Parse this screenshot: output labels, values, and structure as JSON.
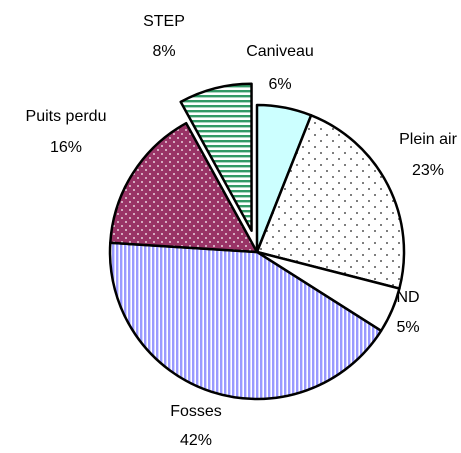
{
  "chart_data": {
    "type": "pie",
    "categories": [
      "Caniveau",
      "Plein air",
      "ND",
      "Fosses",
      "Puits perdu",
      "STEP"
    ],
    "values": [
      6,
      23,
      5,
      42,
      16,
      8
    ],
    "value_labels": [
      "6%",
      "23%",
      "5%",
      "42%",
      "16%",
      "8%"
    ],
    "colors": [
      "#ccffff",
      "#ffffff",
      "#ffffff",
      "#9999ff",
      "#993366",
      "#339966"
    ],
    "exploded": [
      "STEP"
    ]
  }
}
